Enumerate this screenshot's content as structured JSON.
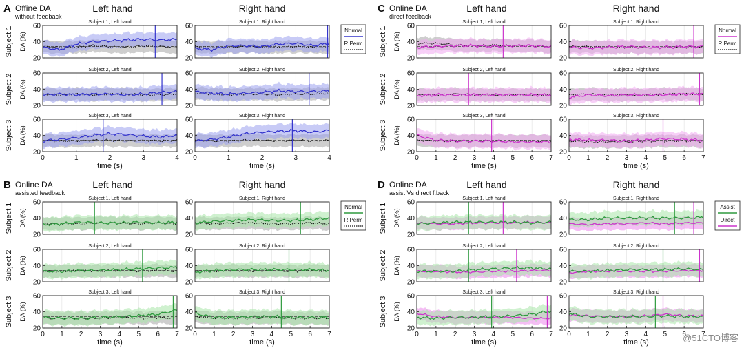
{
  "colors": {
    "normal": "#3333cc",
    "normal_band": "#9aa0ee",
    "assist": "#2e9a3e",
    "assist_band": "#a8e6a8",
    "direct": "#cc33cc",
    "direct_band": "#f0a8f0",
    "rperm": "#111111",
    "rperm_band": "#bdbdbd",
    "frame": "#222222",
    "grid": "#e0e0e0"
  },
  "panels": [
    {
      "letter": "A",
      "title": "Offine DA",
      "subtitle": "without feedback",
      "left_header": "Left hand",
      "right_header": "Right hand",
      "legend": [
        "Normal",
        "R.Perm"
      ],
      "xmax": 4,
      "xticks": [
        "0",
        "1",
        "2",
        "3",
        "4"
      ],
      "xlabel": "time (s)"
    },
    {
      "letter": "B",
      "title": "Online DA",
      "subtitle": "assisted feedback",
      "left_header": "Left hand",
      "right_header": "Right hand",
      "legend": [
        "Normal",
        "R.Perm"
      ],
      "xmax": 7,
      "xticks": [
        "0",
        "1",
        "2",
        "3",
        "4",
        "5",
        "6",
        "7"
      ],
      "xlabel": "time (s)"
    },
    {
      "letter": "C",
      "title": "Online DA",
      "subtitle": "direct feedback",
      "left_header": "Left hand",
      "right_header": "Right hand",
      "legend": [
        "Normal",
        "R.Perm"
      ],
      "xmax": 7,
      "xticks": [
        "0",
        "1",
        "2",
        "3",
        "4",
        "5",
        "6",
        "7"
      ],
      "xlabel": "time (s)"
    },
    {
      "letter": "D",
      "title": "Online DA",
      "subtitle": "assist Vs direct f.back",
      "left_header": "Left hand",
      "right_header": "Right hand",
      "legend": [
        "Assist",
        "Direct"
      ],
      "xmax": 7,
      "xticks": [
        "0",
        "1",
        "2",
        "3",
        "4",
        "5",
        "6",
        "7"
      ],
      "xlabel": "time (s)"
    }
  ],
  "row_labels": [
    "Subject 1",
    "Subject 2",
    "Subject 3"
  ],
  "ylabel": "DA (%)",
  "yticks": [
    "20",
    "40",
    "60"
  ],
  "subplot_titles": [
    [
      "Subject 1, Left hand",
      "Subject 1, Right hand"
    ],
    [
      "Subject 2, Left hand",
      "Subject 2, Right hand"
    ],
    [
      "Subject 3, Left hand",
      "Subject 3, Right hand"
    ]
  ],
  "watermark": "@51CTO博客",
  "chart_data": [
    {
      "type": "line",
      "panel": "A",
      "ylim": [
        20,
        60
      ],
      "xlim": [
        0,
        4
      ],
      "series_names": [
        "Normal",
        "R.Perm"
      ],
      "subplots": [
        {
          "title": "Subject 1, Left hand",
          "x": [
            0,
            0.5,
            1,
            1.5,
            2,
            2.5,
            3,
            3.5,
            4
          ],
          "normal": [
            33,
            30,
            37,
            40,
            41,
            42,
            43,
            42,
            43
          ],
          "rperm": [
            34,
            33,
            33,
            35,
            34,
            33,
            35,
            34,
            33
          ],
          "vline": 3.35
        },
        {
          "title": "Subject 1, Right hand",
          "x": [
            0,
            0.5,
            1,
            1.5,
            2,
            2.5,
            3,
            3.5,
            4
          ],
          "normal": [
            32,
            30,
            35,
            35,
            34,
            37,
            38,
            35,
            38
          ],
          "rperm": [
            34,
            33,
            33,
            34,
            33,
            33,
            34,
            33,
            33
          ],
          "vline": 3.95
        },
        {
          "title": "Subject 2, Left hand",
          "x": [
            0,
            0.5,
            1,
            1.5,
            2,
            2.5,
            3,
            3.5,
            4
          ],
          "normal": [
            33,
            34,
            33,
            34,
            34,
            33,
            34,
            36,
            37
          ],
          "rperm": [
            34,
            33,
            34,
            33,
            34,
            34,
            33,
            33,
            34
          ],
          "vline": 3.55
        },
        {
          "title": "Subject 2, Right hand",
          "x": [
            0,
            0.5,
            1,
            1.5,
            2,
            2.5,
            3,
            3.5,
            4
          ],
          "normal": [
            37,
            35,
            34,
            35,
            36,
            38,
            37,
            37,
            38
          ],
          "rperm": [
            35,
            34,
            33,
            34,
            34,
            33,
            34,
            34,
            35
          ],
          "vline": 3.4
        },
        {
          "title": "Subject 3, Left hand",
          "x": [
            0,
            0.5,
            1,
            1.5,
            2,
            2.5,
            3,
            3.5,
            4
          ],
          "normal": [
            33,
            35,
            37,
            40,
            42,
            41,
            39,
            38,
            40
          ],
          "rperm": [
            34,
            33,
            33,
            34,
            34,
            33,
            34,
            33,
            34
          ],
          "vline": 1.8
        },
        {
          "title": "Subject 3, Right hand",
          "x": [
            0,
            0.5,
            1,
            1.5,
            2,
            2.5,
            3,
            3.5,
            4
          ],
          "normal": [
            33,
            35,
            38,
            42,
            44,
            45,
            46,
            44,
            46
          ],
          "rperm": [
            34,
            33,
            33,
            34,
            34,
            33,
            34,
            33,
            34
          ],
          "vline": 2.9
        }
      ]
    },
    {
      "type": "line",
      "panel": "B",
      "ylim": [
        20,
        60
      ],
      "xlim": [
        0,
        7
      ],
      "series_names": [
        "Normal",
        "R.Perm"
      ],
      "subplots": [
        {
          "title": "Subject 1, Left hand",
          "x": [
            0,
            1,
            2,
            3,
            4,
            5,
            6,
            7
          ],
          "normal": [
            32,
            33,
            35,
            34,
            34,
            35,
            34,
            35
          ],
          "rperm": [
            33,
            33,
            33,
            34,
            34,
            33,
            34,
            33
          ],
          "vline": 2.7
        },
        {
          "title": "Subject 1, Right hand",
          "x": [
            0,
            1,
            2,
            3,
            4,
            5,
            6,
            7
          ],
          "normal": [
            34,
            36,
            37,
            38,
            37,
            37,
            38,
            40
          ],
          "rperm": [
            34,
            33,
            34,
            34,
            33,
            33,
            34,
            33
          ],
          "vline": 5.5
        },
        {
          "title": "Subject 2, Left hand",
          "x": [
            0,
            1,
            2,
            3,
            4,
            5,
            6,
            7
          ],
          "normal": [
            33,
            33,
            34,
            34,
            35,
            36,
            37,
            38
          ],
          "rperm": [
            33,
            33,
            34,
            33,
            34,
            33,
            34,
            33
          ],
          "vline": 5.2
        },
        {
          "title": "Subject 2, Right hand",
          "x": [
            0,
            1,
            2,
            3,
            4,
            5,
            6,
            7
          ],
          "normal": [
            32,
            34,
            35,
            35,
            35,
            35,
            35,
            34
          ],
          "rperm": [
            33,
            33,
            34,
            33,
            34,
            33,
            34,
            33
          ],
          "vline": 4.9
        },
        {
          "title": "Subject 3, Left hand",
          "x": [
            0,
            1,
            2,
            3,
            4,
            5,
            6,
            7
          ],
          "normal": [
            33,
            32,
            32,
            33,
            34,
            35,
            37,
            42
          ],
          "rperm": [
            32,
            32,
            32,
            32,
            33,
            32,
            33,
            32
          ],
          "vline": 6.8
        },
        {
          "title": "Subject 3, Right hand",
          "x": [
            0,
            1,
            2,
            3,
            4,
            5,
            6,
            7
          ],
          "normal": [
            38,
            33,
            33,
            34,
            34,
            33,
            33,
            33
          ],
          "rperm": [
            34,
            32,
            32,
            32,
            33,
            32,
            32,
            32
          ],
          "vline": 4.5
        }
      ]
    },
    {
      "type": "line",
      "panel": "C",
      "ylim": [
        20,
        60
      ],
      "xlim": [
        0,
        7
      ],
      "series_names": [
        "Normal",
        "R.Perm"
      ],
      "subplots": [
        {
          "title": "Subject 1, Left hand",
          "x": [
            0,
            1,
            2,
            3,
            4,
            5,
            6,
            7
          ],
          "normal": [
            33,
            34,
            35,
            35,
            34,
            35,
            35,
            34
          ],
          "rperm": [
            38,
            38,
            36,
            35,
            36,
            35,
            35,
            34
          ],
          "vline": 4.5
        },
        {
          "title": "Subject 1, Right hand",
          "x": [
            0,
            1,
            2,
            3,
            4,
            5,
            6,
            7
          ],
          "normal": [
            33,
            32,
            33,
            34,
            33,
            33,
            34,
            34
          ],
          "rperm": [
            34,
            34,
            33,
            33,
            33,
            33,
            33,
            33
          ],
          "vline": 6.5
        },
        {
          "title": "Subject 2, Left hand",
          "x": [
            0,
            1,
            2,
            3,
            4,
            5,
            6,
            7
          ],
          "normal": [
            32,
            33,
            33,
            33,
            33,
            33,
            33,
            33
          ],
          "rperm": [
            33,
            33,
            34,
            33,
            33,
            33,
            33,
            33
          ],
          "vline": 2.7
        },
        {
          "title": "Subject 2, Right hand",
          "x": [
            0,
            1,
            2,
            3,
            4,
            5,
            6,
            7
          ],
          "normal": [
            30,
            33,
            32,
            33,
            33,
            33,
            34,
            34
          ],
          "rperm": [
            33,
            34,
            33,
            33,
            33,
            34,
            34,
            34
          ],
          "vline": 6.8
        },
        {
          "title": "Subject 3, Left hand",
          "x": [
            0,
            1,
            2,
            3,
            4,
            5,
            6,
            7
          ],
          "normal": [
            40,
            34,
            33,
            33,
            33,
            32,
            32,
            32
          ],
          "rperm": [
            34,
            33,
            33,
            33,
            33,
            33,
            33,
            33
          ],
          "vline": 3.9
        },
        {
          "title": "Subject 3, Right hand",
          "x": [
            0,
            1,
            2,
            3,
            4,
            5,
            6,
            7
          ],
          "normal": [
            35,
            34,
            34,
            33,
            34,
            36,
            35,
            34
          ],
          "rperm": [
            33,
            32,
            32,
            32,
            33,
            33,
            33,
            33
          ],
          "vline": 4.9
        }
      ]
    },
    {
      "type": "line",
      "panel": "D",
      "ylim": [
        20,
        60
      ],
      "xlim": [
        0,
        7
      ],
      "series_names": [
        "Assist",
        "Direct"
      ],
      "subplots": [
        {
          "title": "Subject 1, Left hand",
          "x": [
            0,
            1,
            2,
            3,
            4,
            5,
            6,
            7
          ],
          "assist": [
            33,
            34,
            35,
            35,
            35,
            35,
            34,
            35
          ],
          "direct": [
            34,
            33,
            33,
            34,
            34,
            34,
            35,
            34
          ],
          "vlines": [
            2.7,
            4.5
          ]
        },
        {
          "title": "Subject 1, Right hand",
          "x": [
            0,
            1,
            2,
            3,
            4,
            5,
            6,
            7
          ],
          "assist": [
            38,
            38,
            40,
            40,
            40,
            40,
            40,
            41
          ],
          "direct": [
            33,
            32,
            33,
            33,
            34,
            33,
            34,
            34
          ],
          "vlines": [
            5.5,
            6.5
          ]
        },
        {
          "title": "Subject 2, Left hand",
          "x": [
            0,
            1,
            2,
            3,
            4,
            5,
            6,
            7
          ],
          "assist": [
            33,
            33,
            33,
            35,
            36,
            37,
            37,
            36
          ],
          "direct": [
            33,
            33,
            32,
            32,
            33,
            33,
            34,
            34
          ],
          "vlines": [
            2.7,
            5.2
          ]
        },
        {
          "title": "Subject 2, Right hand",
          "x": [
            0,
            1,
            2,
            3,
            4,
            5,
            6,
            7
          ],
          "assist": [
            33,
            33,
            34,
            35,
            35,
            35,
            36,
            35
          ],
          "direct": [
            31,
            33,
            33,
            33,
            33,
            33,
            34,
            34
          ],
          "vlines": [
            4.9,
            6.8
          ]
        },
        {
          "title": "Subject 3, Left hand",
          "x": [
            0,
            1,
            2,
            3,
            4,
            5,
            6,
            7
          ],
          "assist": [
            33,
            32,
            33,
            33,
            34,
            35,
            37,
            41
          ],
          "direct": [
            38,
            34,
            33,
            33,
            33,
            33,
            32,
            32
          ],
          "vlines": [
            3.9,
            6.8
          ]
        },
        {
          "title": "Subject 3, Right hand",
          "x": [
            0,
            1,
            2,
            3,
            4,
            5,
            6,
            7
          ],
          "assist": [
            38,
            34,
            34,
            34,
            34,
            35,
            34,
            34
          ],
          "direct": [
            36,
            35,
            34,
            34,
            35,
            37,
            35,
            35
          ],
          "vlines": [
            4.5,
            4.9
          ]
        }
      ]
    }
  ]
}
